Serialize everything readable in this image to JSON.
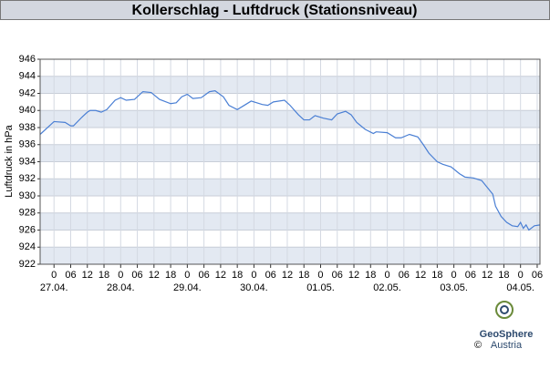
{
  "chart_data": {
    "type": "line",
    "title": "Kollerschlag - Luftdruck (Stationsniveau)",
    "y_label": "Luftdruck in hPa",
    "x": [
      -5,
      0,
      4,
      6,
      7,
      10,
      12,
      13,
      15,
      17,
      19,
      22,
      24,
      26,
      29,
      32,
      35,
      38,
      42,
      44,
      46,
      48,
      50,
      53,
      56,
      58,
      61,
      63,
      66,
      69,
      71,
      75,
      77,
      79,
      83,
      85,
      88,
      90,
      92,
      94,
      97,
      100,
      102,
      105,
      107,
      109,
      112,
      115,
      116,
      120,
      123,
      125,
      128,
      131,
      133,
      135,
      138,
      140,
      143,
      146,
      148,
      151,
      154,
      156,
      158,
      159,
      161,
      163,
      165,
      167,
      168,
      169,
      170,
      171,
      173,
      175
    ],
    "values": [
      937.2,
      938.7,
      938.6,
      938.2,
      938.2,
      939.2,
      939.8,
      940.0,
      940.0,
      939.8,
      940.1,
      941.2,
      941.5,
      941.2,
      941.3,
      942.2,
      942.1,
      941.3,
      940.8,
      940.9,
      941.6,
      941.9,
      941.4,
      941.5,
      942.2,
      942.3,
      941.6,
      940.6,
      940.1,
      940.7,
      941.1,
      940.7,
      940.6,
      941.0,
      941.2,
      940.6,
      939.5,
      938.9,
      938.9,
      939.4,
      939.1,
      938.9,
      939.6,
      939.9,
      939.5,
      938.6,
      937.8,
      937.3,
      937.5,
      937.4,
      936.8,
      936.8,
      937.2,
      936.9,
      936.0,
      935.0,
      934.0,
      933.7,
      933.4,
      932.6,
      932.2,
      932.1,
      931.8,
      931.0,
      930.2,
      928.8,
      927.6,
      926.9,
      926.5,
      926.4,
      926.9,
      926.2,
      926.6,
      926.0,
      926.5,
      926.6
    ],
    "color": "#4a7fd4",
    "xlim": [
      -5,
      175
    ],
    "xticks": [
      0,
      {
        "value": 6,
        "label": "06"
      },
      12,
      18,
      {
        "value": 24,
        "label": "0"
      },
      {
        "value": 30,
        "label": "06"
      },
      {
        "value": 36,
        "label": "12"
      },
      {
        "value": 42,
        "label": "18"
      },
      {
        "value": 48,
        "label": "0"
      },
      {
        "value": 54,
        "label": "06"
      },
      {
        "value": 60,
        "label": "12"
      },
      {
        "value": 66,
        "label": "18"
      },
      {
        "value": 72,
        "label": "0"
      },
      {
        "value": 78,
        "label": "06"
      },
      {
        "value": 84,
        "label": "12"
      },
      {
        "value": 90,
        "label": "18"
      },
      {
        "value": 96,
        "label": "0"
      },
      {
        "value": 102,
        "label": "06"
      },
      {
        "value": 108,
        "label": "12"
      },
      {
        "value": 114,
        "label": "18"
      },
      {
        "value": 120,
        "label": "0"
      },
      {
        "value": 126,
        "label": "06"
      },
      {
        "value": 132,
        "label": "12"
      },
      {
        "value": 138,
        "label": "18"
      },
      {
        "value": 144,
        "label": "0"
      },
      {
        "value": 150,
        "label": "06"
      },
      {
        "value": 156,
        "label": "12"
      },
      {
        "value": 162,
        "label": "18"
      },
      {
        "value": 168,
        "label": "0"
      },
      {
        "value": 174,
        "label": "06"
      }
    ],
    "date_labels": [
      {
        "value": 0,
        "label": "27.04."
      },
      {
        "value": 24,
        "label": "28.04."
      },
      {
        "value": 48,
        "label": "29.04."
      },
      {
        "value": 72,
        "label": "30.04."
      },
      {
        "value": 96,
        "label": "01.05."
      },
      {
        "value": 120,
        "label": "02.05."
      },
      {
        "value": 144,
        "label": "03.05."
      },
      {
        "value": 168,
        "label": "04.05."
      }
    ],
    "ylim": [
      922,
      946
    ],
    "yticks": [
      922,
      924,
      926,
      928,
      930,
      932,
      934,
      936,
      938,
      940,
      942,
      944,
      946
    ],
    "grid": true
  },
  "logo": {
    "name": "GeoSphere",
    "sub": "Austria",
    "copyright": "©"
  }
}
